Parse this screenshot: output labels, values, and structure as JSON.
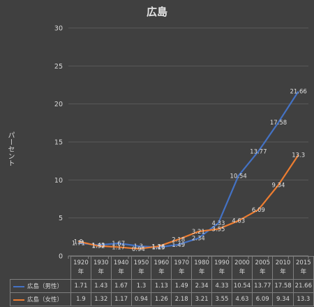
{
  "chart_data": {
    "type": "line",
    "title": "広島",
    "ylabel": "パーセント",
    "xlabel": "",
    "ylim": [
      0,
      30
    ],
    "yticks": [
      0,
      5,
      10,
      15,
      20,
      25,
      30
    ],
    "grid": true,
    "legend": "data-table",
    "categories": [
      "1920\n年",
      "1930\n年",
      "1940\n年",
      "1950\n年",
      "1960\n年",
      "1970\n年",
      "1980\n年",
      "1990\n年",
      "2000\n年",
      "2005\n年",
      "2010\n年",
      "2015\n年"
    ],
    "series": [
      {
        "name": "広島（男性）",
        "color": "#4472c4",
        "values": [
          1.71,
          1.43,
          1.67,
          1.3,
          1.13,
          1.49,
          2.34,
          4.33,
          10.54,
          13.77,
          17.58,
          21.66
        ],
        "labels": [
          "1.71",
          "1.43",
          "1.67",
          "1.3",
          "1.13",
          "1.49",
          "2.34",
          "4.33",
          "10.54",
          "13.77",
          "17.58",
          "21.66"
        ]
      },
      {
        "name": "広島（女性）",
        "color": "#ed7d31",
        "values": [
          1.9,
          1.32,
          1.17,
          0.94,
          1.26,
          2.18,
          3.21,
          3.55,
          4.63,
          6.09,
          9.34,
          13.3
        ],
        "labels": [
          "1.9",
          "1.32",
          "1.17",
          "0.94",
          "1.26",
          "2.18",
          "3.21",
          "3.55",
          "4.63",
          "6.09",
          "9.34",
          "13.3"
        ]
      }
    ]
  }
}
